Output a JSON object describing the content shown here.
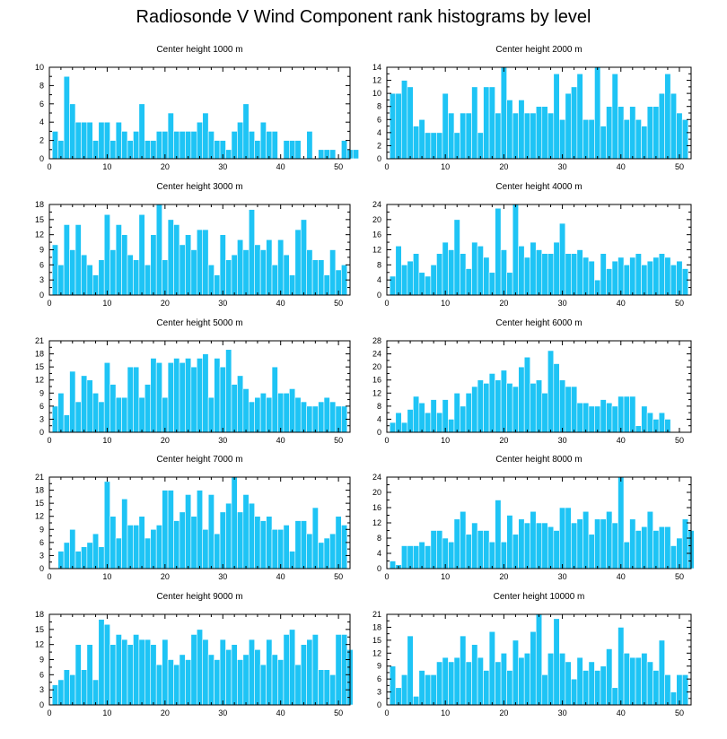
{
  "title": "Radiosonde V Wind Component rank histograms by level",
  "colors": {
    "bar": "#1ec4f5"
  },
  "chart_data": [
    {
      "type": "bar",
      "title": "Center height 1000 m",
      "xlim": [
        0,
        52
      ],
      "ylim": [
        0,
        10
      ],
      "xticks": [
        0,
        10,
        20,
        30,
        40,
        50
      ],
      "yticks": [
        0,
        2,
        4,
        6,
        8,
        10
      ],
      "values": [
        3,
        2,
        9,
        6,
        4,
        4,
        4,
        2,
        4,
        4,
        2,
        4,
        3,
        2,
        3,
        6,
        2,
        2,
        3,
        3,
        5,
        3,
        3,
        3,
        3,
        4,
        5,
        3,
        2,
        2,
        1,
        3,
        4,
        6,
        3,
        2,
        4,
        3,
        3,
        0,
        2,
        2,
        2,
        0,
        3,
        0,
        1,
        1,
        1,
        0,
        2,
        1,
        1
      ]
    },
    {
      "type": "bar",
      "title": "Center height 2000 m",
      "xlim": [
        0,
        52
      ],
      "ylim": [
        0,
        14
      ],
      "xticks": [
        0,
        10,
        20,
        30,
        40,
        50
      ],
      "yticks": [
        0,
        2,
        4,
        6,
        8,
        10,
        12,
        14
      ],
      "values": [
        10,
        10,
        12,
        11,
        5,
        6,
        4,
        4,
        4,
        10,
        7,
        4,
        7,
        7,
        11,
        4,
        11,
        11,
        7,
        14,
        9,
        7,
        9,
        7,
        7,
        8,
        8,
        7,
        13,
        6,
        10,
        11,
        13,
        6,
        6,
        14,
        5,
        8,
        13,
        8,
        6,
        8,
        6,
        5,
        8,
        8,
        10,
        13,
        10,
        7,
        6
      ]
    },
    {
      "type": "bar",
      "title": "Center height 3000 m",
      "xlim": [
        0,
        52
      ],
      "ylim": [
        0,
        18
      ],
      "xticks": [
        0,
        10,
        20,
        30,
        40,
        50
      ],
      "yticks": [
        0,
        3,
        6,
        9,
        12,
        15,
        18
      ],
      "values": [
        10,
        6,
        14,
        9,
        14,
        8,
        6,
        4,
        7,
        16,
        9,
        14,
        12,
        8,
        7,
        16,
        6,
        12,
        18,
        7,
        15,
        14,
        10,
        12,
        9,
        13,
        13,
        6,
        4,
        12,
        7,
        8,
        11,
        9,
        17,
        10,
        9,
        11,
        6,
        11,
        8,
        4,
        13,
        15,
        9,
        7,
        7,
        4,
        9,
        5,
        6
      ]
    },
    {
      "type": "bar",
      "title": "Center height 4000 m",
      "xlim": [
        0,
        52
      ],
      "ylim": [
        0,
        24
      ],
      "xticks": [
        0,
        10,
        20,
        30,
        40,
        50
      ],
      "yticks": [
        0,
        4,
        8,
        12,
        16,
        20,
        24
      ],
      "values": [
        5,
        13,
        8,
        9,
        11,
        6,
        5,
        8,
        11,
        14,
        12,
        20,
        11,
        7,
        14,
        13,
        10,
        6,
        23,
        12,
        6,
        24,
        13,
        10,
        14,
        12,
        11,
        11,
        14,
        19,
        11,
        11,
        12,
        10,
        9,
        4,
        11,
        7,
        9,
        10,
        8,
        10,
        11,
        8,
        9,
        10,
        11,
        10,
        8,
        9,
        7
      ]
    },
    {
      "type": "bar",
      "title": "Center height 5000 m",
      "xlim": [
        0,
        52
      ],
      "ylim": [
        0,
        21
      ],
      "xticks": [
        0,
        10,
        20,
        30,
        40,
        50
      ],
      "yticks": [
        0,
        3,
        6,
        9,
        12,
        15,
        18,
        21
      ],
      "values": [
        6,
        9,
        4,
        14,
        7,
        13,
        12,
        9,
        7,
        16,
        11,
        8,
        8,
        15,
        15,
        8,
        11,
        17,
        16,
        8,
        16,
        17,
        16,
        17,
        15,
        17,
        18,
        8,
        17,
        15,
        19,
        11,
        13,
        10,
        7,
        8,
        9,
        8,
        15,
        9,
        9,
        10,
        8,
        7,
        6,
        6,
        7,
        8,
        7,
        6,
        6
      ]
    },
    {
      "type": "bar",
      "title": "Center height 6000 m",
      "xlim": [
        0,
        52
      ],
      "ylim": [
        0,
        28
      ],
      "xticks": [
        0,
        10,
        20,
        30,
        40,
        50
      ],
      "yticks": [
        0,
        4,
        8,
        12,
        16,
        20,
        24,
        28
      ],
      "values": [
        3,
        6,
        3,
        7,
        11,
        9,
        6,
        10,
        6,
        10,
        4,
        12,
        8,
        12,
        14,
        16,
        15,
        18,
        16,
        19,
        15,
        14,
        20,
        23,
        15,
        16,
        12,
        25,
        21,
        16,
        14,
        14,
        9,
        9,
        8,
        8,
        10,
        9,
        8,
        11,
        11,
        11,
        2,
        8,
        6,
        4,
        6,
        4
      ]
    },
    {
      "type": "bar",
      "title": "Center height 7000 m",
      "xlim": [
        0,
        52
      ],
      "ylim": [
        0,
        21
      ],
      "xticks": [
        0,
        10,
        20,
        30,
        40,
        50
      ],
      "yticks": [
        0,
        3,
        6,
        9,
        12,
        15,
        18,
        21
      ],
      "values": [
        0,
        4,
        6,
        9,
        4,
        5,
        6,
        8,
        5,
        20,
        12,
        7,
        16,
        10,
        10,
        12,
        7,
        9,
        10,
        18,
        18,
        11,
        13,
        17,
        12,
        18,
        9,
        17,
        8,
        13,
        15,
        21,
        13,
        17,
        15,
        12,
        11,
        12,
        9,
        9,
        10,
        4,
        11,
        11,
        8,
        14,
        6,
        7,
        8,
        12,
        10
      ]
    },
    {
      "type": "bar",
      "title": "Center height 8000 m",
      "xlim": [
        0,
        52
      ],
      "ylim": [
        0,
        24
      ],
      "xticks": [
        0,
        10,
        20,
        30,
        40,
        50
      ],
      "yticks": [
        0,
        4,
        8,
        12,
        16,
        20,
        24
      ],
      "values": [
        2,
        1,
        6,
        6,
        6,
        7,
        6,
        10,
        10,
        8,
        7,
        13,
        15,
        9,
        12,
        10,
        10,
        7,
        18,
        7,
        14,
        9,
        13,
        12,
        15,
        12,
        12,
        11,
        10,
        16,
        16,
        12,
        13,
        15,
        9,
        13,
        13,
        15,
        12,
        24,
        7,
        13,
        10,
        11,
        15,
        10,
        11,
        11,
        6,
        8,
        13,
        10
      ]
    },
    {
      "type": "bar",
      "title": "Center height 9000 m",
      "xlim": [
        0,
        52
      ],
      "ylim": [
        0,
        18
      ],
      "xticks": [
        0,
        10,
        20,
        30,
        40,
        50
      ],
      "yticks": [
        0,
        3,
        6,
        9,
        12,
        15,
        18
      ],
      "values": [
        4,
        5,
        7,
        6,
        12,
        7,
        12,
        5,
        17,
        16,
        12,
        14,
        13,
        12,
        14,
        13,
        13,
        12,
        8,
        13,
        9,
        8,
        10,
        9,
        14,
        15,
        13,
        10,
        9,
        13,
        11,
        12,
        9,
        10,
        13,
        11,
        8,
        13,
        10,
        9,
        14,
        15,
        8,
        12,
        13,
        14,
        7,
        7,
        6,
        14,
        14,
        11
      ]
    },
    {
      "type": "bar",
      "title": "Center height 10000 m",
      "xlim": [
        0,
        52
      ],
      "ylim": [
        0,
        21
      ],
      "xticks": [
        0,
        10,
        20,
        30,
        40,
        50
      ],
      "yticks": [
        0,
        3,
        6,
        9,
        12,
        15,
        18,
        21
      ],
      "values": [
        9,
        4,
        7,
        16,
        2,
        8,
        7,
        7,
        10,
        11,
        10,
        11,
        16,
        10,
        14,
        11,
        8,
        17,
        10,
        12,
        8,
        15,
        11,
        12,
        17,
        21,
        7,
        12,
        20,
        12,
        10,
        6,
        11,
        8,
        10,
        8,
        9,
        13,
        4,
        18,
        12,
        11,
        11,
        12,
        10,
        8,
        15,
        7,
        3,
        7,
        7
      ]
    }
  ]
}
